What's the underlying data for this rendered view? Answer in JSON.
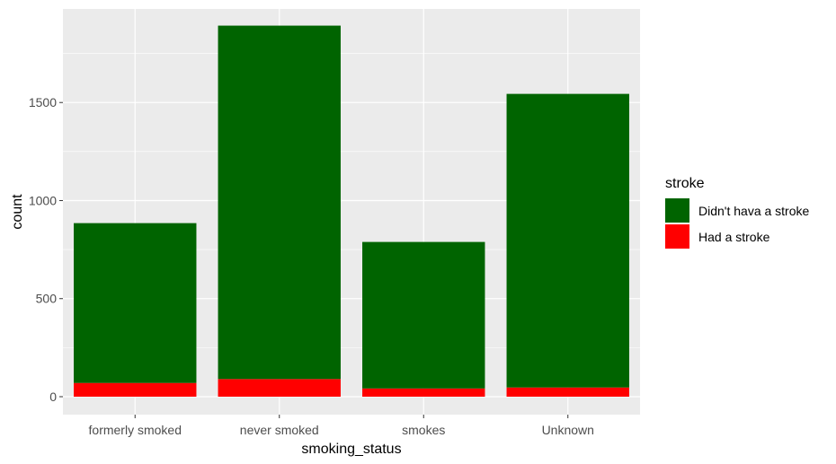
{
  "chart_data": {
    "type": "bar",
    "stacked": true,
    "xlabel": "smoking_status",
    "ylabel": "count",
    "categories": [
      "formerly smoked",
      "never smoked",
      "smokes",
      "Unknown"
    ],
    "series": [
      {
        "name": "Had a stroke",
        "color": "#ff0000",
        "values": [
          70,
          90,
          42,
          47
        ]
      },
      {
        "name": "Didn't hava a stroke",
        "color": "#006400",
        "values": [
          815,
          1802,
          747,
          1497
        ]
      }
    ],
    "ylim": [
      0,
      1890
    ],
    "yticks": [
      0,
      500,
      1000,
      1500
    ],
    "grid": true,
    "panel_background": "#ebebeb",
    "legend": {
      "title": "stroke",
      "position": "right",
      "entries": [
        "Didn't hava a stroke",
        "Had a stroke"
      ]
    }
  }
}
